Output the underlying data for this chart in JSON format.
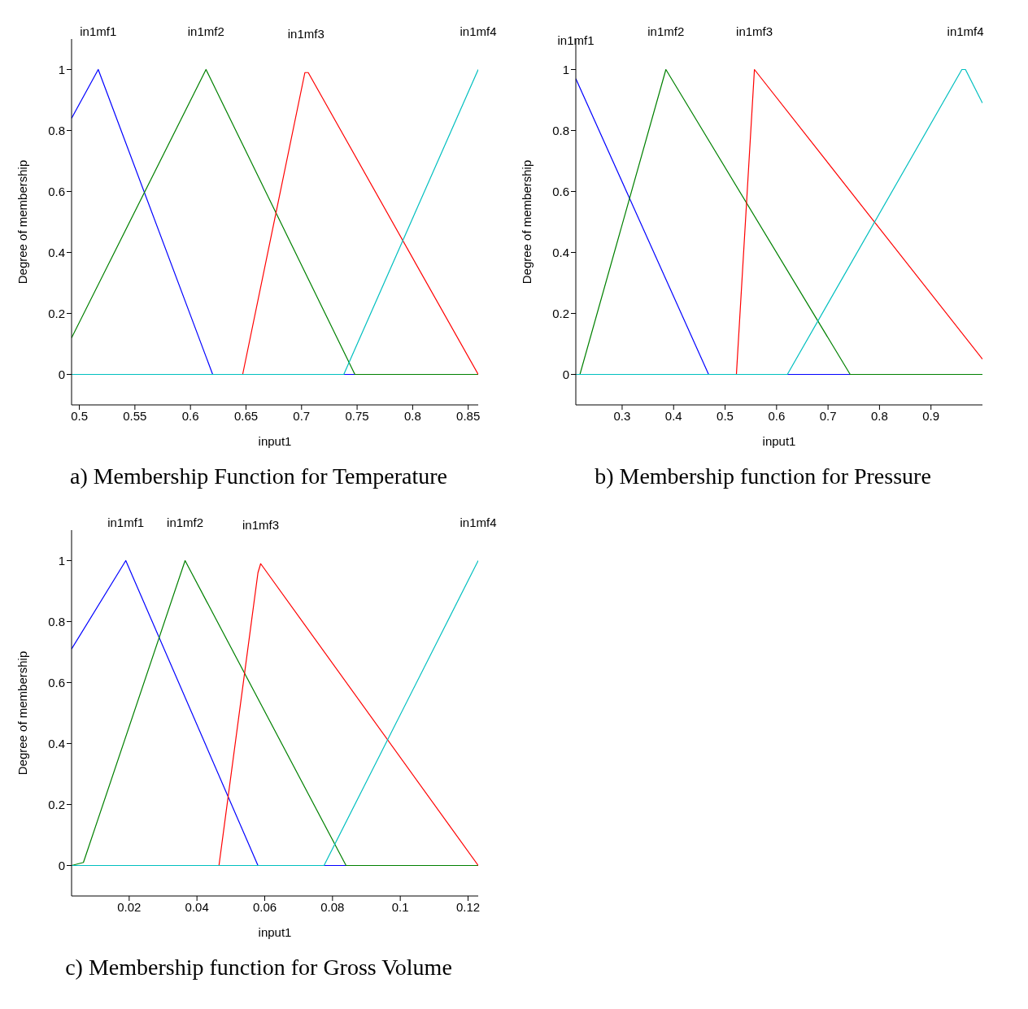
{
  "chart_data": [
    {
      "type": "line",
      "title": "a) Membership Function for Temperature",
      "xlabel": "input1",
      "ylabel": "Degree of membership",
      "xlim": [
        0.493,
        0.859
      ],
      "xticks": [
        0.5,
        0.55,
        0.6,
        0.65,
        0.7,
        0.75,
        0.8,
        0.85
      ],
      "ylim": [
        -0.1,
        1.1
      ],
      "yticks": [
        0,
        0.2,
        0.4,
        0.6,
        0.8,
        1
      ],
      "line_style": "solid",
      "series": [
        {
          "color": "#0000ff",
          "x": [
            0.493,
            0.517,
            0.62,
            0.859
          ],
          "values": [
            0.84,
            1,
            0,
            0
          ]
        },
        {
          "color": "#008000",
          "x": [
            0.493,
            0.614,
            0.748,
            0.859
          ],
          "values": [
            0.12,
            1,
            0,
            0
          ]
        },
        {
          "color": "#ff0000",
          "x": [
            0.493,
            0.647,
            0.703,
            0.706,
            0.859
          ],
          "values": [
            0,
            0,
            0.99,
            0.99,
            0
          ]
        },
        {
          "color": "#00bfbf",
          "x": [
            0.493,
            0.738,
            0.859
          ],
          "values": [
            0,
            0,
            1
          ]
        }
      ],
      "annotations": [
        {
          "text": "in1mf1",
          "x": 0.517,
          "y": 1
        },
        {
          "text": "in1mf2",
          "x": 0.614,
          "y": 1
        },
        {
          "text": "in1mf3",
          "x": 0.704,
          "y": 0.99
        },
        {
          "text": "in1mf4",
          "x": 0.859,
          "y": 1
        }
      ]
    },
    {
      "type": "line",
      "title": "b) Membership function for Pressure",
      "xlabel": "input1",
      "ylabel": "Degree of membership",
      "xlim": [
        0.21,
        1.0
      ],
      "xticks": [
        0.3,
        0.4,
        0.5,
        0.6,
        0.7,
        0.8,
        0.9
      ],
      "ylim": [
        -0.1,
        1.1
      ],
      "yticks": [
        0,
        0.2,
        0.4,
        0.6,
        0.8,
        1
      ],
      "line_style": "solid",
      "series": [
        {
          "color": "#0000ff",
          "x": [
            0.21,
            0.468,
            1.0
          ],
          "values": [
            0.97,
            0,
            0
          ]
        },
        {
          "color": "#008000",
          "x": [
            0.21,
            0.218,
            0.385,
            0.743,
            1.0
          ],
          "values": [
            0,
            0,
            1,
            0,
            0
          ]
        },
        {
          "color": "#ff0000",
          "x": [
            0.21,
            0.522,
            0.557,
            1.0
          ],
          "values": [
            0,
            0,
            1,
            0.05
          ]
        },
        {
          "color": "#00bfbf",
          "x": [
            0.21,
            0.621,
            0.96,
            0.967,
            1.0
          ],
          "values": [
            0,
            0,
            1,
            1,
            0.89
          ]
        }
      ],
      "annotations": [
        {
          "text": "in1mf1",
          "x": 0.21,
          "y": 0.97
        },
        {
          "text": "in1mf2",
          "x": 0.385,
          "y": 1
        },
        {
          "text": "in1mf3",
          "x": 0.557,
          "y": 1
        },
        {
          "text": "in1mf4",
          "x": 0.967,
          "y": 1
        }
      ]
    },
    {
      "type": "line",
      "title": "c) Membership function for Gross Volume",
      "xlabel": "input1",
      "ylabel": "Degree of membership",
      "xlim": [
        0.003,
        0.123
      ],
      "xticks": [
        0.02,
        0.04,
        0.06,
        0.08,
        0.1,
        0.12
      ],
      "ylim": [
        -0.1,
        1.1
      ],
      "yticks": [
        0,
        0.2,
        0.4,
        0.6,
        0.8,
        1
      ],
      "line_style": "solid",
      "series": [
        {
          "color": "#0000ff",
          "x": [
            0.003,
            0.019,
            0.058,
            0.123
          ],
          "values": [
            0.71,
            1,
            0,
            0
          ]
        },
        {
          "color": "#008000",
          "x": [
            0.003,
            0.0065,
            0.0365,
            0.084,
            0.123
          ],
          "values": [
            0,
            0.01,
            1,
            0,
            0
          ]
        },
        {
          "color": "#ff0000",
          "x": [
            0.003,
            0.0465,
            0.058,
            0.0588,
            0.123
          ],
          "values": [
            0,
            0,
            0.96,
            0.99,
            0
          ]
        },
        {
          "color": "#00bfbf",
          "x": [
            0.003,
            0.0775,
            0.123
          ],
          "values": [
            0,
            0,
            1
          ]
        }
      ],
      "annotations": [
        {
          "text": "in1mf1",
          "x": 0.019,
          "y": 1
        },
        {
          "text": "in1mf2",
          "x": 0.0365,
          "y": 1
        },
        {
          "text": "in1mf3",
          "x": 0.0588,
          "y": 0.99
        },
        {
          "text": "in1mf4",
          "x": 0.123,
          "y": 1
        }
      ]
    }
  ]
}
